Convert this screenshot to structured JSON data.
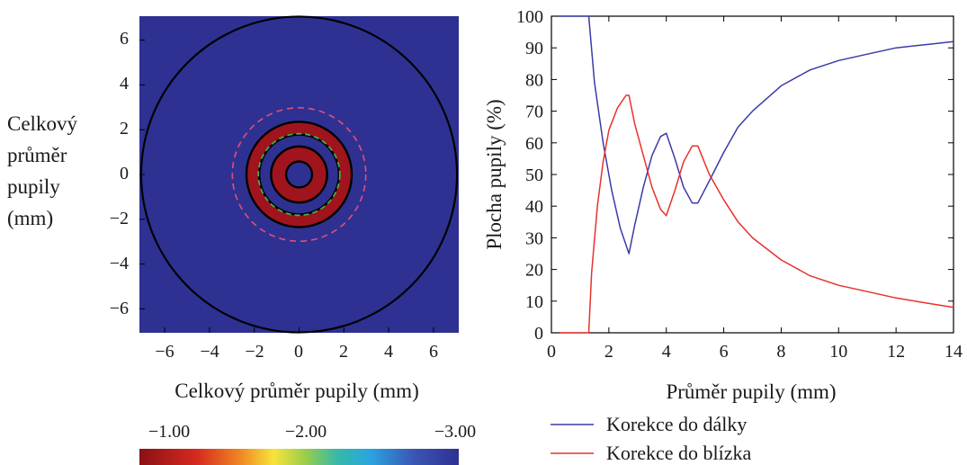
{
  "left_panel": {
    "side_label_lines": [
      "Celkový",
      "průměr",
      "pupily",
      "(mm)"
    ],
    "xlabel": "Celkový průměr pupily (mm)",
    "x_ticks": [
      "−6",
      "−4",
      "−2",
      "0",
      "2",
      "4",
      "6"
    ],
    "y_ticks": [
      "6",
      "4",
      "2",
      "0",
      "−2",
      "−4",
      "−6"
    ],
    "colorbar_ticks": [
      "−1.00",
      "−2.00",
      "−3.00"
    ],
    "colors": {
      "background": "#2E3192",
      "ring": "#A0141E",
      "outline": "#000000",
      "dashed_outer": "#E0507A",
      "dashed_inner": "#3FAF4A"
    }
  },
  "chart_data": {
    "type": "line",
    "xlabel": "Průměr pupily (mm)",
    "ylabel": "Plocha pupily (%)",
    "xlim": [
      0,
      14
    ],
    "ylim": [
      0,
      100
    ],
    "x_ticks": [
      "0",
      "2",
      "4",
      "6",
      "8",
      "10",
      "12",
      "14"
    ],
    "y_ticks": [
      "0",
      "10",
      "20",
      "30",
      "40",
      "50",
      "60",
      "70",
      "80",
      "90",
      "100"
    ],
    "legend_position": "bottom",
    "series": [
      {
        "name": "Korekce do dálky",
        "color": "#3B3BA8",
        "x": [
          0.3,
          1.3,
          1.5,
          1.8,
          2.1,
          2.4,
          2.7,
          2.9,
          3.2,
          3.5,
          3.8,
          4.0,
          4.3,
          4.6,
          4.9,
          5.1,
          5.5,
          6.0,
          6.5,
          7.0,
          8.0,
          9.0,
          10.0,
          11.0,
          12.0,
          13.0,
          14.0
        ],
        "y": [
          100,
          100,
          79,
          60,
          45,
          33,
          25,
          34,
          46,
          56,
          62,
          63,
          55,
          46,
          41,
          41,
          48,
          57,
          65,
          70,
          78,
          83,
          86,
          88,
          90,
          91,
          92
        ]
      },
      {
        "name": "Korekce do blízka",
        "color": "#E8312B",
        "x": [
          0.3,
          1.3,
          1.4,
          1.6,
          1.8,
          2.0,
          2.3,
          2.6,
          2.7,
          2.9,
          3.2,
          3.5,
          3.8,
          4.0,
          4.3,
          4.6,
          4.9,
          5.1,
          5.5,
          6.0,
          6.5,
          7.0,
          8.0,
          9.0,
          10.0,
          11.0,
          12.0,
          13.0,
          14.0
        ],
        "y": [
          0,
          0,
          19,
          40,
          54,
          64,
          71,
          75,
          75,
          66,
          56,
          46,
          39,
          37,
          45,
          54,
          59,
          59,
          50,
          42,
          35,
          30,
          23,
          18,
          15,
          13,
          11,
          9.5,
          8
        ]
      }
    ]
  }
}
